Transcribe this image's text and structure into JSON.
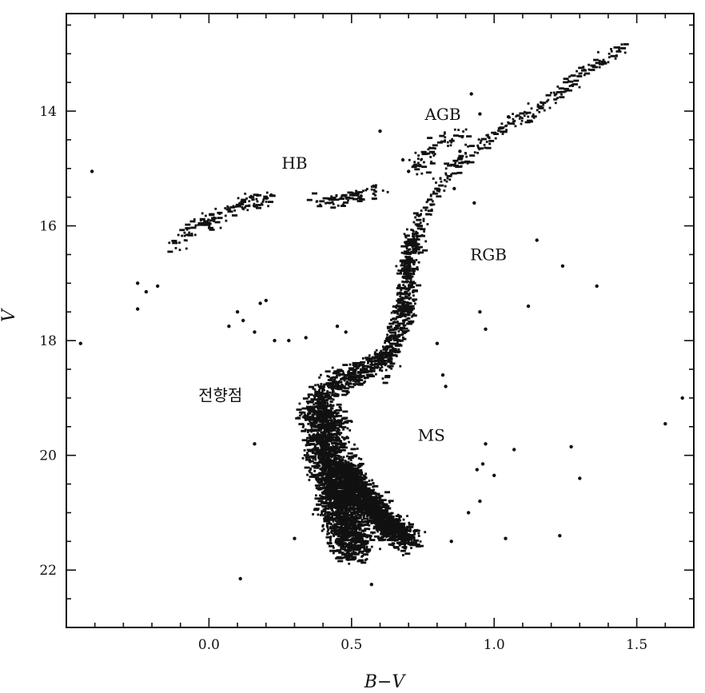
{
  "chart_data": {
    "type": "scatter",
    "title": "",
    "xlabel": "B−V",
    "ylabel": "V",
    "xlim": [
      -0.5,
      1.7
    ],
    "ylim": [
      23,
      12.3
    ],
    "y_inverted": true,
    "x_ticks": [
      {
        "value": 0.0,
        "label": "0.0"
      },
      {
        "value": 0.5,
        "label": "0.5"
      },
      {
        "value": 1.0,
        "label": "1.0"
      },
      {
        "value": 1.5,
        "label": "1.5"
      }
    ],
    "y_ticks": [
      {
        "value": 14,
        "label": "14"
      },
      {
        "value": 16,
        "label": "16"
      },
      {
        "value": 18,
        "label": "18"
      },
      {
        "value": 20,
        "label": "20"
      },
      {
        "value": 22,
        "label": "22"
      }
    ],
    "x_minor_step": 0.1,
    "y_minor_step": 0.5,
    "grid": false,
    "annotations": [
      {
        "text": "AGB",
        "x": 0.82,
        "y": 14.15
      },
      {
        "text": "HB",
        "x": 0.3,
        "y": 15.0
      },
      {
        "text": "RGB",
        "x": 0.98,
        "y": 16.6
      },
      {
        "text": "전향점",
        "x": 0.04,
        "y": 19.05
      },
      {
        "text": "MS",
        "x": 0.78,
        "y": 19.75
      }
    ],
    "regions": [
      {
        "name": "MS",
        "path": [
          [
            0.52,
            21.7
          ],
          [
            0.48,
            21.3
          ],
          [
            0.45,
            20.7
          ],
          [
            0.42,
            20.1
          ],
          [
            0.41,
            19.6
          ],
          [
            0.42,
            19.3
          ]
        ],
        "half_width": 0.06,
        "density": 1800
      },
      {
        "name": "MS-core",
        "path": [
          [
            0.47,
            20.2
          ],
          [
            0.55,
            20.8
          ],
          [
            0.62,
            21.2
          ],
          [
            0.7,
            21.5
          ]
        ],
        "half_width": 0.045,
        "density": 1500
      },
      {
        "name": "turnoff",
        "path": [
          [
            0.36,
            19.4
          ],
          [
            0.4,
            19.0
          ],
          [
            0.46,
            18.7
          ],
          [
            0.55,
            18.5
          ],
          [
            0.62,
            18.3
          ]
        ],
        "half_width": 0.045,
        "density": 500
      },
      {
        "name": "subgiant",
        "path": [
          [
            0.62,
            18.3
          ],
          [
            0.66,
            17.9
          ],
          [
            0.69,
            17.3
          ],
          [
            0.7,
            16.7
          ],
          [
            0.72,
            16.2
          ]
        ],
        "half_width": 0.03,
        "density": 450
      },
      {
        "name": "RGB",
        "path": [
          [
            0.72,
            16.2
          ],
          [
            0.78,
            15.5
          ],
          [
            0.86,
            15.0
          ],
          [
            0.95,
            14.6
          ],
          [
            1.05,
            14.2
          ],
          [
            1.18,
            13.9
          ],
          [
            1.3,
            13.4
          ],
          [
            1.45,
            12.9
          ]
        ],
        "half_width": 0.025,
        "density": 260
      },
      {
        "name": "AGB",
        "path": [
          [
            0.72,
            15.0
          ],
          [
            0.8,
            14.6
          ],
          [
            0.9,
            14.4
          ]
        ],
        "half_width": 0.03,
        "density": 60
      },
      {
        "name": "HB-blue",
        "path": [
          [
            -0.12,
            16.4
          ],
          [
            -0.05,
            16.0
          ],
          [
            0.05,
            15.8
          ],
          [
            0.14,
            15.6
          ],
          [
            0.22,
            15.5
          ]
        ],
        "half_width": 0.03,
        "density": 130
      },
      {
        "name": "HB-red",
        "path": [
          [
            0.38,
            15.6
          ],
          [
            0.45,
            15.55
          ],
          [
            0.52,
            15.5
          ],
          [
            0.6,
            15.4
          ]
        ],
        "half_width": 0.03,
        "density": 70
      }
    ],
    "outliers": [
      [
        -0.41,
        15.05
      ],
      [
        -0.45,
        18.05
      ],
      [
        -0.25,
        17.0
      ],
      [
        -0.22,
        17.15
      ],
      [
        -0.18,
        17.05
      ],
      [
        -0.25,
        17.45
      ],
      [
        0.07,
        17.75
      ],
      [
        0.1,
        17.5
      ],
      [
        0.12,
        17.65
      ],
      [
        0.18,
        17.35
      ],
      [
        0.16,
        17.85
      ],
      [
        0.2,
        17.3
      ],
      [
        0.23,
        18.0
      ],
      [
        0.28,
        18.0
      ],
      [
        0.34,
        17.95
      ],
      [
        0.45,
        17.75
      ],
      [
        0.48,
        17.85
      ],
      [
        0.16,
        19.8
      ],
      [
        0.11,
        22.15
      ],
      [
        0.3,
        21.45
      ],
      [
        0.95,
        17.5
      ],
      [
        0.97,
        17.8
      ],
      [
        1.15,
        16.25
      ],
      [
        1.24,
        16.7
      ],
      [
        1.12,
        17.4
      ],
      [
        1.36,
        17.05
      ],
      [
        1.6,
        19.45
      ],
      [
        1.66,
        19.0
      ],
      [
        1.3,
        20.4
      ],
      [
        1.27,
        19.85
      ],
      [
        1.07,
        19.9
      ],
      [
        0.96,
        20.15
      ],
      [
        1.0,
        20.35
      ],
      [
        0.94,
        20.25
      ],
      [
        1.23,
        21.4
      ],
      [
        1.04,
        21.45
      ],
      [
        0.91,
        21.0
      ],
      [
        0.95,
        20.8
      ],
      [
        0.97,
        19.8
      ],
      [
        0.92,
        13.7
      ],
      [
        0.6,
        14.35
      ],
      [
        0.7,
        15.05
      ],
      [
        0.74,
        14.95
      ],
      [
        0.68,
        14.85
      ],
      [
        0.88,
        14.7
      ],
      [
        0.95,
        14.05
      ],
      [
        1.05,
        14.1
      ],
      [
        0.57,
        22.25
      ],
      [
        0.85,
        21.5
      ],
      [
        0.82,
        18.6
      ],
      [
        0.8,
        18.05
      ],
      [
        0.83,
        18.8
      ],
      [
        0.93,
        15.6
      ],
      [
        0.86,
        15.35
      ]
    ]
  }
}
